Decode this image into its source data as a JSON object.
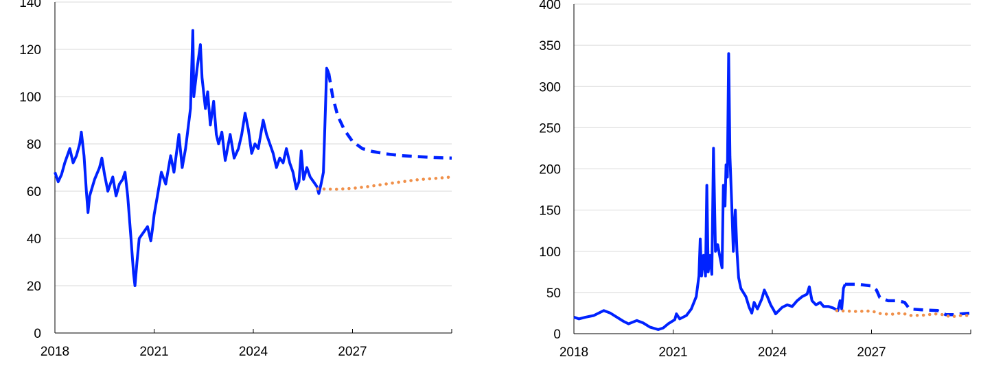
{
  "chart_data": [
    {
      "type": "line",
      "xlim": [
        2018,
        2030
      ],
      "ylim": [
        0,
        140
      ],
      "x_ticks": [
        "2018",
        "2021",
        "2024",
        "2027"
      ],
      "y_ticks": [
        "0",
        "20",
        "40",
        "60",
        "80",
        "100",
        "120",
        "140"
      ],
      "grid": true,
      "colors": {
        "historical": "#0022ff",
        "futures": "#0022ff",
        "alternative": "#f0904a"
      },
      "series": [
        {
          "style": "solid",
          "points": [
            [
              2018.0,
              68
            ],
            [
              2018.1,
              64
            ],
            [
              2018.2,
              67
            ],
            [
              2018.3,
              72
            ],
            [
              2018.45,
              78
            ],
            [
              2018.55,
              72
            ],
            [
              2018.65,
              75
            ],
            [
              2018.75,
              80
            ],
            [
              2018.8,
              85
            ],
            [
              2018.88,
              75
            ],
            [
              2018.95,
              60
            ],
            [
              2019.0,
              51
            ],
            [
              2019.05,
              58
            ],
            [
              2019.2,
              65
            ],
            [
              2019.35,
              70
            ],
            [
              2019.42,
              74
            ],
            [
              2019.5,
              67
            ],
            [
              2019.6,
              60
            ],
            [
              2019.75,
              66
            ],
            [
              2019.85,
              58
            ],
            [
              2019.95,
              63
            ],
            [
              2020.05,
              65
            ],
            [
              2020.12,
              68
            ],
            [
              2020.2,
              58
            ],
            [
              2020.3,
              40
            ],
            [
              2020.38,
              25
            ],
            [
              2020.42,
              20
            ],
            [
              2020.48,
              30
            ],
            [
              2020.55,
              40
            ],
            [
              2020.7,
              43
            ],
            [
              2020.8,
              45
            ],
            [
              2020.9,
              39
            ],
            [
              2020.95,
              44
            ],
            [
              2021.0,
              50
            ],
            [
              2021.1,
              58
            ],
            [
              2021.22,
              68
            ],
            [
              2021.35,
              63
            ],
            [
              2021.5,
              75
            ],
            [
              2021.6,
              68
            ],
            [
              2021.75,
              84
            ],
            [
              2021.85,
              70
            ],
            [
              2021.95,
              78
            ],
            [
              2022.1,
              95
            ],
            [
              2022.17,
              128
            ],
            [
              2022.2,
              100
            ],
            [
              2022.3,
              112
            ],
            [
              2022.4,
              122
            ],
            [
              2022.45,
              108
            ],
            [
              2022.55,
              95
            ],
            [
              2022.62,
              102
            ],
            [
              2022.7,
              88
            ],
            [
              2022.8,
              98
            ],
            [
              2022.88,
              84
            ],
            [
              2022.95,
              80
            ],
            [
              2023.05,
              85
            ],
            [
              2023.15,
              73
            ],
            [
              2023.3,
              84
            ],
            [
              2023.42,
              74
            ],
            [
              2023.55,
              78
            ],
            [
              2023.65,
              84
            ],
            [
              2023.75,
              93
            ],
            [
              2023.85,
              86
            ],
            [
              2023.95,
              76
            ],
            [
              2024.05,
              80
            ],
            [
              2024.15,
              78
            ],
            [
              2024.3,
              90
            ],
            [
              2024.4,
              84
            ],
            [
              2024.5,
              80
            ],
            [
              2024.6,
              76
            ],
            [
              2024.7,
              70
            ],
            [
              2024.8,
              74
            ],
            [
              2024.9,
              72
            ],
            [
              2025.0,
              78
            ],
            [
              2025.1,
              72
            ],
            [
              2025.2,
              68
            ],
            [
              2025.3,
              61
            ],
            [
              2025.38,
              64
            ],
            [
              2025.45,
              77
            ],
            [
              2025.52,
              65
            ],
            [
              2025.62,
              70
            ],
            [
              2025.72,
              66
            ],
            [
              2025.82,
              64
            ],
            [
              2025.92,
              62
            ],
            [
              2025.98,
              59
            ],
            [
              2026.05,
              63
            ],
            [
              2026.12,
              68
            ],
            [
              2026.17,
              90
            ],
            [
              2026.22,
              112
            ],
            [
              2026.28,
              110
            ]
          ]
        },
        {
          "style": "dashed",
          "points": [
            [
              2026.28,
              110
            ],
            [
              2026.4,
              100
            ],
            [
              2026.55,
              92
            ],
            [
              2026.75,
              86
            ],
            [
              2027.0,
              81
            ],
            [
              2027.3,
              78
            ],
            [
              2027.6,
              76.8
            ],
            [
              2028.0,
              75.8
            ],
            [
              2028.5,
              75
            ],
            [
              2029.0,
              74.6
            ],
            [
              2029.5,
              74.2
            ],
            [
              2030.0,
              74
            ]
          ]
        },
        {
          "style": "dotted",
          "points": [
            [
              2025.95,
              61
            ],
            [
              2026.5,
              60.8
            ],
            [
              2027.0,
              61.2
            ],
            [
              2027.5,
              62
            ],
            [
              2028.0,
              63
            ],
            [
              2028.5,
              64
            ],
            [
              2029.0,
              64.9
            ],
            [
              2029.5,
              65.4
            ],
            [
              2030.0,
              66
            ]
          ]
        }
      ]
    },
    {
      "type": "line",
      "xlim": [
        2018,
        2030
      ],
      "ylim": [
        0,
        400
      ],
      "x_ticks": [
        "2018",
        "2021",
        "2024",
        "2027"
      ],
      "y_ticks": [
        "0",
        "50",
        "100",
        "150",
        "200",
        "250",
        "300",
        "350",
        "400"
      ],
      "grid": true,
      "colors": {
        "historical": "#0022ff",
        "futures": "#0022ff",
        "alternative": "#f0904a"
      },
      "series": [
        {
          "style": "solid",
          "points": [
            [
              2018.0,
              20
            ],
            [
              2018.15,
              18
            ],
            [
              2018.35,
              20
            ],
            [
              2018.6,
              22
            ],
            [
              2018.9,
              28
            ],
            [
              2019.1,
              25
            ],
            [
              2019.3,
              20
            ],
            [
              2019.5,
              15
            ],
            [
              2019.65,
              12
            ],
            [
              2019.9,
              16
            ],
            [
              2020.1,
              13
            ],
            [
              2020.3,
              8
            ],
            [
              2020.55,
              5
            ],
            [
              2020.7,
              7
            ],
            [
              2020.85,
              12
            ],
            [
              2021.05,
              17
            ],
            [
              2021.1,
              24
            ],
            [
              2021.2,
              18
            ],
            [
              2021.4,
              22
            ],
            [
              2021.55,
              30
            ],
            [
              2021.7,
              45
            ],
            [
              2021.78,
              70
            ],
            [
              2021.82,
              115
            ],
            [
              2021.86,
              70
            ],
            [
              2021.92,
              95
            ],
            [
              2021.98,
              70
            ],
            [
              2022.02,
              180
            ],
            [
              2022.06,
              75
            ],
            [
              2022.12,
              95
            ],
            [
              2022.17,
              72
            ],
            [
              2022.22,
              225
            ],
            [
              2022.28,
              100
            ],
            [
              2022.35,
              108
            ],
            [
              2022.42,
              92
            ],
            [
              2022.48,
              80
            ],
            [
              2022.52,
              180
            ],
            [
              2022.57,
              155
            ],
            [
              2022.6,
              205
            ],
            [
              2022.64,
              190
            ],
            [
              2022.68,
              340
            ],
            [
              2022.72,
              215
            ],
            [
              2022.78,
              150
            ],
            [
              2022.82,
              100
            ],
            [
              2022.88,
              150
            ],
            [
              2022.93,
              100
            ],
            [
              2022.98,
              68
            ],
            [
              2023.05,
              55
            ],
            [
              2023.2,
              45
            ],
            [
              2023.3,
              32
            ],
            [
              2023.38,
              25
            ],
            [
              2023.45,
              38
            ],
            [
              2023.55,
              30
            ],
            [
              2023.68,
              42
            ],
            [
              2023.76,
              53
            ],
            [
              2023.85,
              45
            ],
            [
              2023.95,
              35
            ],
            [
              2024.05,
              28
            ],
            [
              2024.1,
              24
            ],
            [
              2024.3,
              32
            ],
            [
              2024.45,
              35
            ],
            [
              2024.6,
              33
            ],
            [
              2024.75,
              40
            ],
            [
              2024.9,
              45
            ],
            [
              2025.05,
              48
            ],
            [
              2025.12,
              57
            ],
            [
              2025.2,
              40
            ],
            [
              2025.32,
              35
            ],
            [
              2025.45,
              38
            ],
            [
              2025.55,
              33
            ],
            [
              2025.7,
              33
            ],
            [
              2025.85,
              31
            ],
            [
              2025.98,
              28
            ],
            [
              2026.05,
              40
            ],
            [
              2026.1,
              30
            ],
            [
              2026.15,
              55
            ],
            [
              2026.2,
              60
            ]
          ]
        },
        {
          "style": "dashed",
          "points": [
            [
              2026.2,
              60
            ],
            [
              2026.6,
              60
            ],
            [
              2027.0,
              58
            ],
            [
              2027.15,
              53
            ],
            [
              2027.25,
              44
            ],
            [
              2027.5,
              40
            ],
            [
              2027.8,
              40
            ],
            [
              2028.0,
              38
            ],
            [
              2028.15,
              30
            ],
            [
              2028.5,
              29
            ],
            [
              2029.0,
              28
            ],
            [
              2029.25,
              23
            ],
            [
              2029.6,
              23
            ],
            [
              2029.7,
              24
            ],
            [
              2030.0,
              25
            ]
          ]
        },
        {
          "style": "dotted",
          "points": [
            [
              2025.95,
              28
            ],
            [
              2026.5,
              27
            ],
            [
              2027.0,
              27.5
            ],
            [
              2027.3,
              24
            ],
            [
              2027.6,
              23.5
            ],
            [
              2027.9,
              25
            ],
            [
              2028.2,
              22
            ],
            [
              2028.6,
              22.5
            ],
            [
              2028.9,
              24
            ],
            [
              2029.1,
              23.5
            ],
            [
              2029.4,
              20.5
            ],
            [
              2029.7,
              22
            ],
            [
              2030.0,
              22
            ]
          ]
        }
      ]
    }
  ]
}
